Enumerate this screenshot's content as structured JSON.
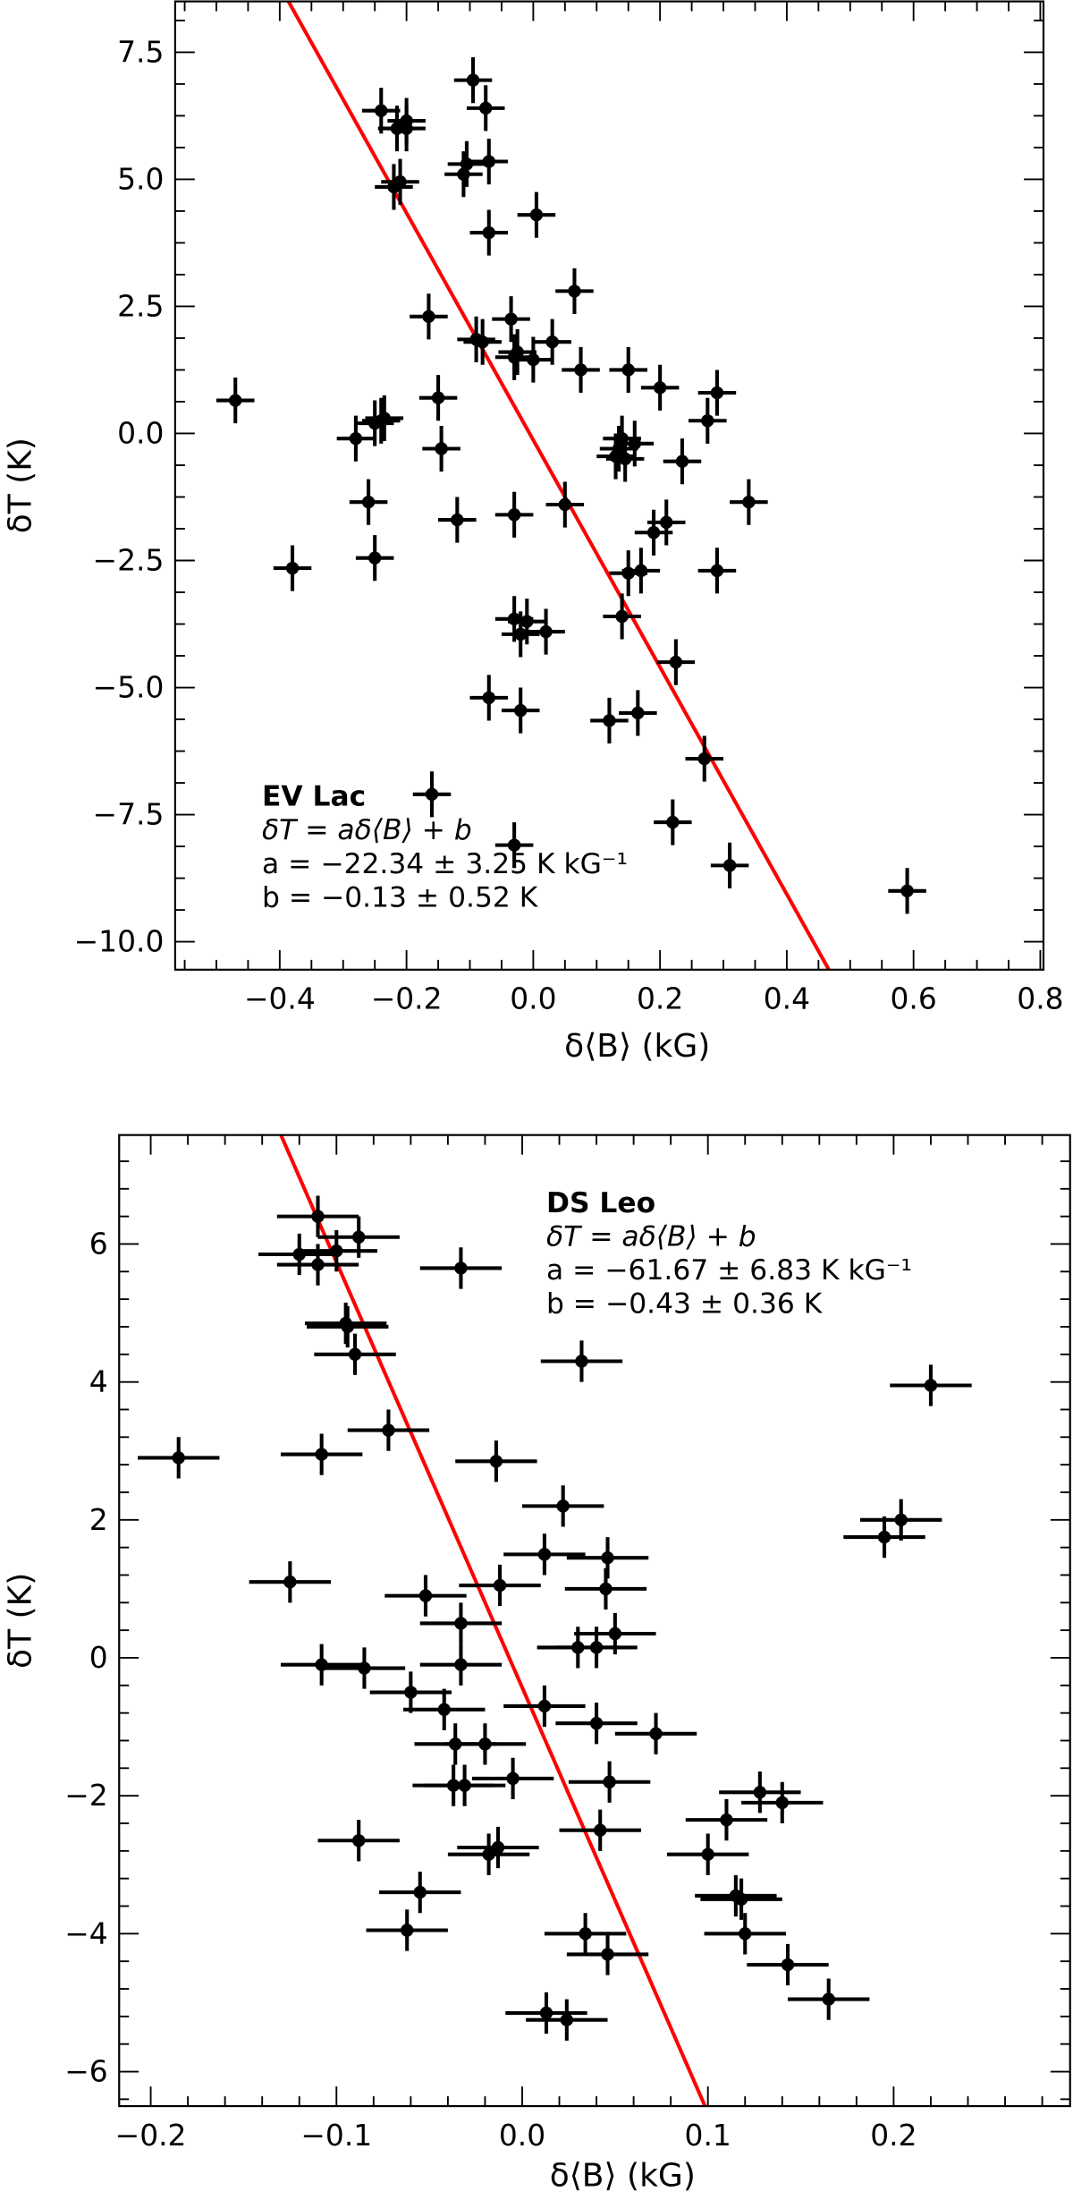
{
  "chart_data": [
    {
      "type": "scatter",
      "panel": "top",
      "title": "",
      "xlabel": "δ⟨B⟩ (kG)",
      "ylabel": "δT (K)",
      "xlim": [
        -0.565,
        0.805
      ],
      "ylim": [
        -10.55,
        8.5
      ],
      "xticks": [
        -0.4,
        -0.2,
        0.0,
        0.2,
        0.4,
        0.6,
        0.8
      ],
      "xtick_labels": [
        "−0.4",
        "−0.2",
        "0.0",
        "0.2",
        "0.4",
        "0.6",
        "0.8"
      ],
      "yticks": [
        7.5,
        5.0,
        2.5,
        0.0,
        -2.5,
        -5.0,
        -7.5,
        -10.0
      ],
      "ytick_labels": [
        "7.5",
        "5.0",
        "2.5",
        "0.0",
        "−2.5",
        "−5.0",
        "−7.5",
        "−10.0"
      ],
      "grid": false,
      "annotation": {
        "name": "EV Lac",
        "equation": "δT = aδ⟨B⟩ + b",
        "a_line": "a = −22.34 ± 3.25 K kG⁻¹",
        "b_line": "b = −0.13 ± 0.52 K"
      },
      "fit": {
        "a": -22.34,
        "a_err": 3.25,
        "b": -0.13,
        "b_err": 0.52,
        "color": "#ff0000"
      },
      "series": [
        {
          "name": "EV Lac",
          "color": "#000000",
          "x_err": 0.03,
          "y_err": 0.45,
          "points": [
            [
              -0.47,
              0.65
            ],
            [
              -0.38,
              -2.65
            ],
            [
              -0.28,
              -0.1
            ],
            [
              -0.26,
              -1.35
            ],
            [
              -0.25,
              0.2
            ],
            [
              -0.24,
              0.25
            ],
            [
              -0.235,
              0.3
            ],
            [
              -0.25,
              -2.45
            ],
            [
              -0.24,
              6.35
            ],
            [
              -0.215,
              6.0
            ],
            [
              -0.21,
              4.95
            ],
            [
              -0.22,
              4.85
            ],
            [
              -0.2,
              6.15
            ],
            [
              -0.2,
              6.0
            ],
            [
              -0.165,
              2.3
            ],
            [
              -0.16,
              -7.1
            ],
            [
              -0.15,
              0.7
            ],
            [
              -0.145,
              -0.3
            ],
            [
              -0.12,
              -1.7
            ],
            [
              -0.11,
              5.1
            ],
            [
              -0.105,
              5.3
            ],
            [
              -0.095,
              6.95
            ],
            [
              -0.09,
              1.85
            ],
            [
              -0.08,
              1.8
            ],
            [
              -0.075,
              6.4
            ],
            [
              -0.07,
              5.35
            ],
            [
              -0.07,
              3.95
            ],
            [
              -0.07,
              -5.2
            ],
            [
              -0.035,
              2.25
            ],
            [
              -0.03,
              -3.65
            ],
            [
              -0.03,
              -1.6
            ],
            [
              -0.03,
              1.5
            ],
            [
              -0.025,
              1.6
            ],
            [
              -0.02,
              -5.45
            ],
            [
              -0.03,
              -8.1
            ],
            [
              -0.02,
              -3.95
            ],
            [
              -0.01,
              -3.7
            ],
            [
              0.005,
              4.3
            ],
            [
              0.0,
              1.45
            ],
            [
              0.02,
              -3.9
            ],
            [
              0.03,
              1.8
            ],
            [
              0.05,
              -1.4
            ],
            [
              0.065,
              2.8
            ],
            [
              0.075,
              1.25
            ],
            [
              0.12,
              -5.65
            ],
            [
              0.13,
              -0.45
            ],
            [
              0.135,
              -0.3
            ],
            [
              0.14,
              -0.1
            ],
            [
              0.14,
              -3.6
            ],
            [
              0.15,
              1.25
            ],
            [
              0.145,
              -0.5
            ],
            [
              0.15,
              -2.75
            ],
            [
              0.16,
              -0.2
            ],
            [
              0.17,
              -2.7
            ],
            [
              0.165,
              -5.5
            ],
            [
              0.19,
              -1.95
            ],
            [
              0.2,
              0.9
            ],
            [
              0.21,
              -1.75
            ],
            [
              0.22,
              -7.65
            ],
            [
              0.225,
              -4.5
            ],
            [
              0.235,
              -0.55
            ],
            [
              0.27,
              -6.4
            ],
            [
              0.275,
              0.25
            ],
            [
              0.29,
              0.8
            ],
            [
              0.29,
              -2.7
            ],
            [
              0.31,
              -8.5
            ],
            [
              0.34,
              -1.35
            ],
            [
              0.59,
              -9.0
            ]
          ]
        }
      ]
    },
    {
      "type": "scatter",
      "panel": "bottom",
      "title": "",
      "xlabel": "δ⟨B⟩ (kG)",
      "ylabel": "δT (K)",
      "xlim": [
        -0.217,
        0.295
      ],
      "ylim": [
        -6.5,
        7.58
      ],
      "xticks": [
        -0.2,
        -0.1,
        0.0,
        0.1,
        0.2
      ],
      "xtick_labels": [
        "−0.2",
        "−0.1",
        "0.0",
        "0.1",
        "0.2"
      ],
      "yticks": [
        6,
        4,
        2,
        0,
        -2,
        -4,
        -6
      ],
      "ytick_labels": [
        "6",
        "4",
        "2",
        "0",
        "−2",
        "−4",
        "−6"
      ],
      "grid": false,
      "annotation": {
        "name": "DS Leo",
        "equation": "δT = aδ⟨B⟩ + b",
        "a_line": "a = −61.67 ± 6.83 K kG⁻¹",
        "b_line": "b = −0.43 ± 0.36 K"
      },
      "fit": {
        "a": -61.67,
        "a_err": 6.83,
        "b": -0.43,
        "b_err": 0.36,
        "color": "#ff0000"
      },
      "series": [
        {
          "name": "DS Leo",
          "color": "#000000",
          "x_err": 0.022,
          "y_err": 0.3,
          "points": [
            [
              -0.185,
              2.9
            ],
            [
              -0.125,
              1.1
            ],
            [
              -0.12,
              5.85
            ],
            [
              -0.11,
              5.7
            ],
            [
              -0.11,
              6.4
            ],
            [
              -0.108,
              -0.1
            ],
            [
              -0.108,
              2.95
            ],
            [
              -0.1,
              5.9
            ],
            [
              -0.095,
              4.85
            ],
            [
              -0.094,
              4.8
            ],
            [
              -0.09,
              4.4
            ],
            [
              -0.088,
              -2.65
            ],
            [
              -0.088,
              6.1
            ],
            [
              -0.085,
              -0.15
            ],
            [
              -0.072,
              3.3
            ],
            [
              -0.062,
              -3.95
            ],
            [
              -0.06,
              -0.5
            ],
            [
              -0.055,
              -3.4
            ],
            [
              -0.052,
              0.9
            ],
            [
              -0.042,
              -0.75
            ],
            [
              -0.037,
              -1.85
            ],
            [
              -0.036,
              -1.25
            ],
            [
              -0.033,
              5.65
            ],
            [
              -0.033,
              0.5
            ],
            [
              -0.033,
              -0.1
            ],
            [
              -0.031,
              -1.85
            ],
            [
              -0.02,
              -1.25
            ],
            [
              -0.018,
              -2.85
            ],
            [
              -0.014,
              2.85
            ],
            [
              -0.013,
              -2.75
            ],
            [
              -0.012,
              1.05
            ],
            [
              -0.005,
              -1.75
            ],
            [
              0.012,
              1.5
            ],
            [
              0.012,
              -0.7
            ],
            [
              0.013,
              -5.15
            ],
            [
              0.022,
              2.2
            ],
            [
              0.024,
              -5.25
            ],
            [
              0.03,
              0.15
            ],
            [
              0.032,
              4.3
            ],
            [
              0.034,
              -4.0
            ],
            [
              0.04,
              0.15
            ],
            [
              0.04,
              -0.95
            ],
            [
              0.042,
              -2.5
            ],
            [
              0.045,
              1.0
            ],
            [
              0.046,
              1.45
            ],
            [
              0.046,
              -4.3
            ],
            [
              0.047,
              -1.8
            ],
            [
              0.05,
              0.35
            ],
            [
              0.072,
              -1.1
            ],
            [
              0.1,
              -2.85
            ],
            [
              0.11,
              -2.35
            ],
            [
              0.115,
              -3.45
            ],
            [
              0.118,
              -3.5
            ],
            [
              0.12,
              -4.0
            ],
            [
              0.128,
              -1.95
            ],
            [
              0.14,
              -2.1
            ],
            [
              0.143,
              -4.45
            ],
            [
              0.165,
              -4.95
            ],
            [
              0.195,
              1.75
            ],
            [
              0.204,
              2.0
            ],
            [
              0.22,
              3.95
            ]
          ]
        }
      ]
    }
  ]
}
